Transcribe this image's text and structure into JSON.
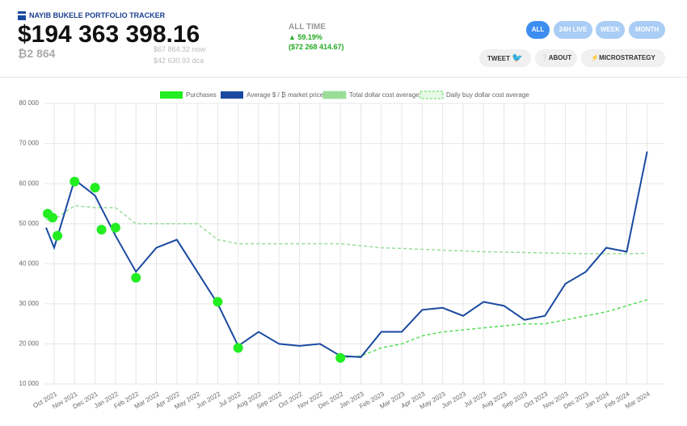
{
  "header": {
    "title": "NAYIB BUKELE PORTFOLIO TRACKER",
    "total": "$194 363 398.16",
    "btc": "₿2 864",
    "now_price": "$67 864.32",
    "now_label": "now",
    "dca_price": "$42 630.93",
    "dca_label": "dca"
  },
  "stats": {
    "period": "ALL TIME",
    "change_pct": "▲ 59.19%",
    "change_usd": "($72 268 414.67)"
  },
  "buttons": {
    "ranges": [
      "ALL",
      "24H LIVE",
      "WEEK",
      "MONTH"
    ],
    "links": [
      "TWEET",
      "ABOUT",
      "MICROSTRATEGY"
    ]
  },
  "chart_data": {
    "type": "line",
    "grid": true,
    "legend": "top",
    "categories": [
      null,
      "Oct 2021",
      "Nov 2021",
      "Dec 2021",
      "Jan 2022",
      "Feb 2022",
      "Mar 2022",
      "Apr 2022",
      "May 2022",
      "Jun 2022",
      "Jul 2022",
      "Aug 2022",
      "Sep 2022",
      "Oct 2022",
      "Nov 2022",
      "Dec 2022",
      "Jan 2023",
      "Feb 2023",
      "Mar 2023",
      "Apr 2023",
      "May 2023",
      "Jun 2023",
      "Jul 2023",
      "Aug 2023",
      "Sep 2023",
      "Oct 2023",
      "Nov 2023",
      "Dec 2023",
      "Jan 2024",
      "Feb 2024",
      "Mar 2024"
    ],
    "ylim": [
      10000,
      80000
    ],
    "yticks": [
      {
        "value": 10000,
        "label": "10 000"
      },
      {
        "value": 20000,
        "label": "20 000"
      },
      {
        "value": 30000,
        "label": "30 000"
      },
      {
        "value": 40000,
        "label": "40 000"
      },
      {
        "value": 50000,
        "label": "50 000"
      },
      {
        "value": 60000,
        "label": "60 000"
      },
      {
        "value": 70000,
        "label": "70 000"
      },
      {
        "value": 80000,
        "label": "80 000"
      }
    ],
    "series": [
      {
        "name": "Purchases",
        "type": "scatter",
        "color": "#22ee22",
        "x": [
          "Sep 2021",
          "Sep 2021",
          "Sep 2021",
          "Nov 2021",
          "Dec 2021",
          "Dec 2021",
          "Jan 2022",
          "Feb 2022",
          "Jun 2022",
          "Jul 2022",
          "Dec 2022"
        ],
        "values": [
          52500,
          51500,
          47000,
          60500,
          59000,
          48500,
          49000,
          36500,
          30500,
          19000,
          16500
        ]
      },
      {
        "name": "Average $ / ₿ market price",
        "type": "line",
        "color": "#1a4aa0",
        "dashed": false,
        "values": [
          49000,
          44000,
          61000,
          57000,
          47000,
          38000,
          44000,
          46000,
          38000,
          30000,
          19500,
          23000,
          20000,
          19500,
          20000,
          17000,
          16700,
          23000,
          23000,
          28500,
          29000,
          27000,
          30500,
          29500,
          26000,
          27000,
          35000,
          38000,
          44000,
          43000,
          68000
        ]
      },
      {
        "name": "Total dollar cost average",
        "type": "line",
        "color": "#99dd99",
        "dashed": true,
        "values": [
          51000,
          51000,
          54500,
          54000,
          54000,
          50000,
          50000,
          50000,
          50000,
          46000,
          45000,
          45000,
          45000,
          45000,
          45000,
          45000,
          44500,
          44000,
          43800,
          43600,
          43400,
          43200,
          43000,
          42900,
          42800,
          42700,
          42600,
          42500,
          42500,
          42500,
          42600
        ]
      },
      {
        "name": "Daily buy dollar cost average",
        "type": "line",
        "color": "#55dd55",
        "dashed": true,
        "values": [
          null,
          null,
          null,
          null,
          null,
          null,
          null,
          null,
          null,
          null,
          null,
          null,
          null,
          null,
          null,
          16500,
          17000,
          19000,
          20000,
          22000,
          23000,
          23500,
          24000,
          24500,
          25000,
          25000,
          26000,
          27000,
          28000,
          29500,
          31000
        ]
      }
    ]
  }
}
